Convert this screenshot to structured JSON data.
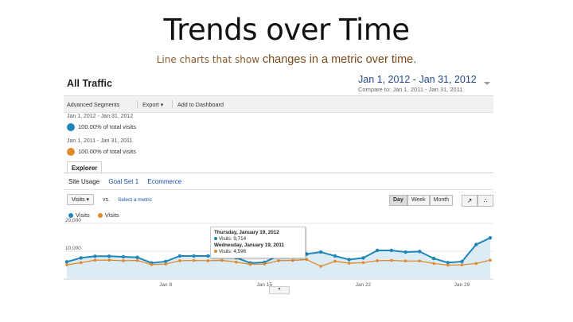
{
  "slide": {
    "title": "Trends over Time",
    "subtitle_a": "Line charts that show ",
    "subtitle_b": "changes in a metric over time."
  },
  "app": {
    "report_title": "All Traffic",
    "date_range": "Jan 1, 2012 - Jan 31, 2012",
    "compare_to": "Compare to: Jan 1, 2011 - Jan 31, 2011",
    "toolbar": {
      "advanced_segments": "Advanced Segments",
      "export": "Export ▾",
      "add_to_dashboard": "Add to Dashboard"
    },
    "segments": [
      {
        "range": "Jan 1, 2012 - Jan 31, 2012",
        "label": "100.00% of total visits",
        "color": "#1f86b8"
      },
      {
        "range": "Jan 1, 2011 - Jan 31, 2011",
        "label": "100.00% of total visits",
        "color": "#e08a2c"
      }
    ],
    "explorer_tab": "Explorer",
    "subnav": [
      "Site Usage",
      "Goal Set 1",
      "Ecommerce"
    ],
    "metric_select": "Visits ▾",
    "vs_label": "vs.",
    "select_metric": "Select a metric",
    "granularity": [
      "Day",
      "Week",
      "Month"
    ],
    "granularity_selected": "Day",
    "legend": [
      {
        "name": "Visits",
        "color": "#1f86b8"
      },
      {
        "name": "Visits",
        "color": "#e08a2c"
      }
    ],
    "tooltip": {
      "date_a": "Thursday, January 19, 2012",
      "value_a": "Visits: 9,714",
      "date_b": "Wednesday, January 19, 2011",
      "value_b": "Visits: 4,596"
    }
  },
  "chart_data": {
    "type": "area",
    "ylim": [
      0,
      20000
    ],
    "y_ticks": [
      "20,000",
      "10,000"
    ],
    "x_tick_labels": [
      "Jan 8",
      "Jan 15",
      "Jan 22",
      "Jan 29"
    ],
    "x_tick_days": [
      8,
      15,
      22,
      29
    ],
    "x": [
      1,
      2,
      3,
      4,
      5,
      6,
      7,
      8,
      9,
      10,
      11,
      12,
      13,
      14,
      15,
      16,
      17,
      18,
      19,
      20,
      21,
      22,
      23,
      24,
      25,
      26,
      27,
      28,
      29,
      30,
      31
    ],
    "series": [
      {
        "name": "Visits",
        "color": "#1f86b8",
        "fill": "#dcecf6",
        "values": [
          6200,
          7600,
          8200,
          8200,
          8000,
          7800,
          5800,
          6300,
          8300,
          8300,
          8300,
          8800,
          7700,
          5800,
          6000,
          8500,
          8600,
          9000,
          9714,
          8300,
          7000,
          7600,
          10300,
          10300,
          9700,
          9900,
          7400,
          5900,
          6300,
          12400,
          14800
        ]
      },
      {
        "name": "Visits",
        "color": "#e08a2c",
        "values": [
          5100,
          5900,
          6800,
          6800,
          6600,
          6700,
          5200,
          5400,
          6600,
          6700,
          6600,
          6700,
          6100,
          5300,
          5400,
          6600,
          6700,
          7000,
          4596,
          6400,
          5700,
          5900,
          6600,
          6700,
          6500,
          6500,
          5600,
          5000,
          5100,
          5600,
          6800
        ]
      }
    ]
  }
}
